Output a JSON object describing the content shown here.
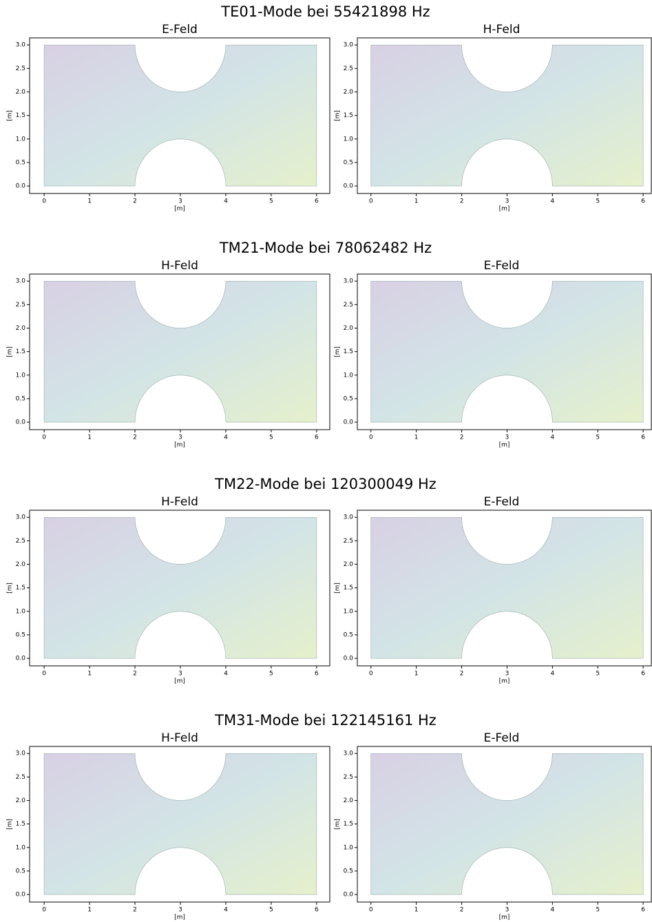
{
  "chart_data": [
    {
      "type": "quiver",
      "suptitle": "TE01-Mode bei 55421898 Hz",
      "title": "E-Feld",
      "xlabel": "[m]",
      "ylabel": "[m]",
      "xlim": [
        -0.32,
        6.29
      ],
      "ylim": [
        -0.16,
        3.15
      ],
      "xticks": [
        0,
        1,
        2,
        3,
        4,
        5,
        6
      ],
      "yticks": [
        {
          "value": 0,
          "label": "0.0"
        },
        {
          "value": 0.5,
          "label": "0.5"
        },
        {
          "value": 1,
          "label": "1.0"
        },
        {
          "value": 1.5,
          "label": "1.5"
        },
        {
          "value": 2,
          "label": "2.0"
        },
        {
          "value": 2.5,
          "label": "2.5"
        },
        {
          "value": 3,
          "label": "3.0"
        }
      ]
    },
    {
      "type": "quiver",
      "title": "H-Feld",
      "xlabel": "[m]",
      "ylabel": "[m]",
      "xlim": [
        -0.3,
        6.18
      ],
      "ylim": [
        -0.16,
        3.15
      ],
      "xticks": [
        0,
        1,
        2,
        3,
        4,
        5,
        6
      ],
      "yticks": [
        {
          "value": 0,
          "label": "0.0"
        },
        {
          "value": 0.5,
          "label": "0.5"
        },
        {
          "value": 1,
          "label": "1.0"
        },
        {
          "value": 1.5,
          "label": "1.5"
        },
        {
          "value": 2,
          "label": "2.0"
        },
        {
          "value": 2.5,
          "label": "2.5"
        },
        {
          "value": 3,
          "label": "3.0"
        }
      ]
    },
    {
      "type": "quiver",
      "suptitle": "TM21-Mode bei 78062482 Hz",
      "title": "H-Feld",
      "xlabel": "[m]",
      "ylabel": "[m]",
      "xlim": [
        -0.32,
        6.29
      ],
      "ylim": [
        -0.16,
        3.15
      ],
      "xticks": [
        0,
        1,
        2,
        3,
        4,
        5,
        6
      ],
      "yticks": [
        {
          "value": 0,
          "label": "0.0"
        },
        {
          "value": 0.5,
          "label": "0.5"
        },
        {
          "value": 1,
          "label": "1.0"
        },
        {
          "value": 1.5,
          "label": "1.5"
        },
        {
          "value": 2,
          "label": "2.0"
        },
        {
          "value": 2.5,
          "label": "2.5"
        },
        {
          "value": 3,
          "label": "3.0"
        }
      ]
    },
    {
      "type": "quiver",
      "title": "E-Feld",
      "xlabel": "[m]",
      "ylabel": "[m]",
      "xlim": [
        -0.3,
        6.18
      ],
      "ylim": [
        -0.16,
        3.15
      ],
      "xticks": [
        0,
        1,
        2,
        3,
        4,
        5,
        6
      ],
      "yticks": [
        {
          "value": 0,
          "label": "0.0"
        },
        {
          "value": 0.5,
          "label": "0.5"
        },
        {
          "value": 1,
          "label": "1.0"
        },
        {
          "value": 1.5,
          "label": "1.5"
        },
        {
          "value": 2,
          "label": "2.0"
        },
        {
          "value": 2.5,
          "label": "2.5"
        },
        {
          "value": 3,
          "label": "3.0"
        }
      ]
    },
    {
      "type": "quiver",
      "suptitle": "TM22-Mode bei 120300049 Hz",
      "title": "H-Feld",
      "xlabel": "[m]",
      "ylabel": "[m]",
      "xlim": [
        -0.32,
        6.29
      ],
      "ylim": [
        -0.16,
        3.15
      ],
      "xticks": [
        0,
        1,
        2,
        3,
        4,
        5,
        6
      ],
      "yticks": [
        {
          "value": 0,
          "label": "0.0"
        },
        {
          "value": 0.5,
          "label": "0.5"
        },
        {
          "value": 1,
          "label": "1.0"
        },
        {
          "value": 1.5,
          "label": "1.5"
        },
        {
          "value": 2,
          "label": "2.0"
        },
        {
          "value": 2.5,
          "label": "2.5"
        },
        {
          "value": 3,
          "label": "3.0"
        }
      ]
    },
    {
      "type": "quiver",
      "title": "E-Feld",
      "xlabel": "[m]",
      "ylabel": "[m]",
      "xlim": [
        -0.3,
        6.18
      ],
      "ylim": [
        -0.16,
        3.15
      ],
      "xticks": [
        0,
        1,
        2,
        3,
        4,
        5,
        6
      ],
      "yticks": [
        {
          "value": 0,
          "label": "0.0"
        },
        {
          "value": 0.5,
          "label": "0.5"
        },
        {
          "value": 1,
          "label": "1.0"
        },
        {
          "value": 1.5,
          "label": "1.5"
        },
        {
          "value": 2,
          "label": "2.0"
        },
        {
          "value": 2.5,
          "label": "2.5"
        },
        {
          "value": 3,
          "label": "3.0"
        }
      ]
    },
    {
      "type": "quiver",
      "suptitle": "TM31-Mode bei 122145161 Hz",
      "title": "H-Feld",
      "xlabel": "[m]",
      "ylabel": "[m]",
      "xlim": [
        -0.32,
        6.29
      ],
      "ylim": [
        -0.16,
        3.15
      ],
      "xticks": [
        0,
        1,
        2,
        3,
        4,
        5,
        6
      ],
      "yticks": [
        {
          "value": 0,
          "label": "0.0"
        },
        {
          "value": 0.5,
          "label": "0.5"
        },
        {
          "value": 1,
          "label": "1.0"
        },
        {
          "value": 1.5,
          "label": "1.5"
        },
        {
          "value": 2,
          "label": "2.0"
        },
        {
          "value": 2.5,
          "label": "2.5"
        },
        {
          "value": 3,
          "label": "3.0"
        }
      ]
    },
    {
      "type": "quiver",
      "title": "E-Feld",
      "xlabel": "[m]",
      "ylabel": "[m]",
      "xlim": [
        -0.3,
        6.18
      ],
      "ylim": [
        -0.16,
        3.15
      ],
      "xticks": [
        0,
        1,
        2,
        3,
        4,
        5,
        6
      ],
      "yticks": [
        {
          "value": 0,
          "label": "0.0"
        },
        {
          "value": 0.5,
          "label": "0.5"
        },
        {
          "value": 1,
          "label": "1.0"
        },
        {
          "value": 1.5,
          "label": "1.5"
        },
        {
          "value": 2,
          "label": "2.0"
        },
        {
          "value": 2.5,
          "label": "2.5"
        },
        {
          "value": 3,
          "label": "3.0"
        }
      ]
    }
  ]
}
